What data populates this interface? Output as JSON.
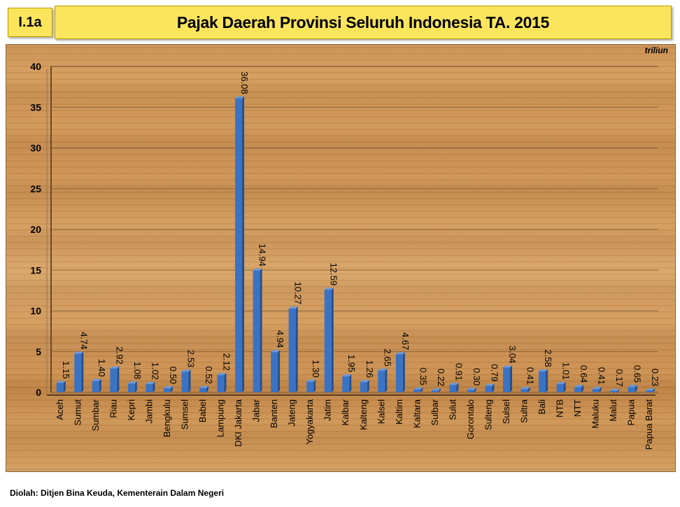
{
  "header": {
    "badge": "I.1a",
    "title": "Pajak Daerah Provinsi Seluruh Indonesia TA. 2015"
  },
  "footer": {
    "source": "Diolah: Ditjen Bina Keuda, Kementerain Dalam Negeri"
  },
  "colors": {
    "bar": "#3b73c4",
    "bar_dark": "#234f8f",
    "title_bg": "#fbe55c"
  },
  "chart_data": {
    "type": "bar",
    "unit": "triliun",
    "title": "Pajak Daerah Provinsi Seluruh Indonesia TA. 2015",
    "xlabel": "",
    "ylabel": "",
    "ylim": [
      0,
      40
    ],
    "yticks": [
      0,
      5,
      10,
      15,
      20,
      25,
      30,
      35,
      40
    ],
    "grid": true,
    "categories": [
      "Aceh",
      "Sumut",
      "Sumbar",
      "Riau",
      "Kepri",
      "Jambi",
      "Bengkulu",
      "Sumsel",
      "Babel",
      "Lampung",
      "DKI Jakarta",
      "Jabar",
      "Banten",
      "Jateng",
      "Yogyakarta",
      "Jatim",
      "Kalbar",
      "Kalteng",
      "Kalsel",
      "Kaltim",
      "Kaltara",
      "Sulbar",
      "Sulut",
      "Gorontalo",
      "Sulteng",
      "Sulsel",
      "Sultra",
      "Bali",
      "NTB",
      "NTT",
      "Maluku",
      "Malut",
      "Papua",
      "Papua Barat"
    ],
    "values": [
      1.15,
      4.74,
      1.4,
      2.92,
      1.08,
      1.02,
      0.5,
      2.53,
      0.52,
      2.12,
      36.08,
      14.94,
      4.94,
      10.27,
      1.3,
      12.59,
      1.95,
      1.26,
      2.65,
      4.67,
      0.35,
      0.22,
      0.91,
      0.3,
      0.79,
      3.04,
      0.41,
      2.58,
      1.01,
      0.64,
      0.41,
      0.17,
      0.65,
      0.23
    ],
    "labels": [
      "1.15",
      "4.74",
      "1.40",
      "2.92",
      "1.08",
      "1.02",
      "0.50",
      "2.53",
      "0.52",
      "2.12",
      "36.08",
      "14.94",
      "4.94",
      "10.27",
      "1.30",
      "12.59",
      "1.95",
      "1.26",
      "2.65",
      "4.67",
      "0.35",
      "0.22",
      "0.91",
      "0.30",
      "0.79",
      "3.04",
      "0.41",
      "2.58",
      "1.01",
      "0.64",
      "0.41",
      "0.17",
      "0.65",
      "0.23"
    ]
  }
}
